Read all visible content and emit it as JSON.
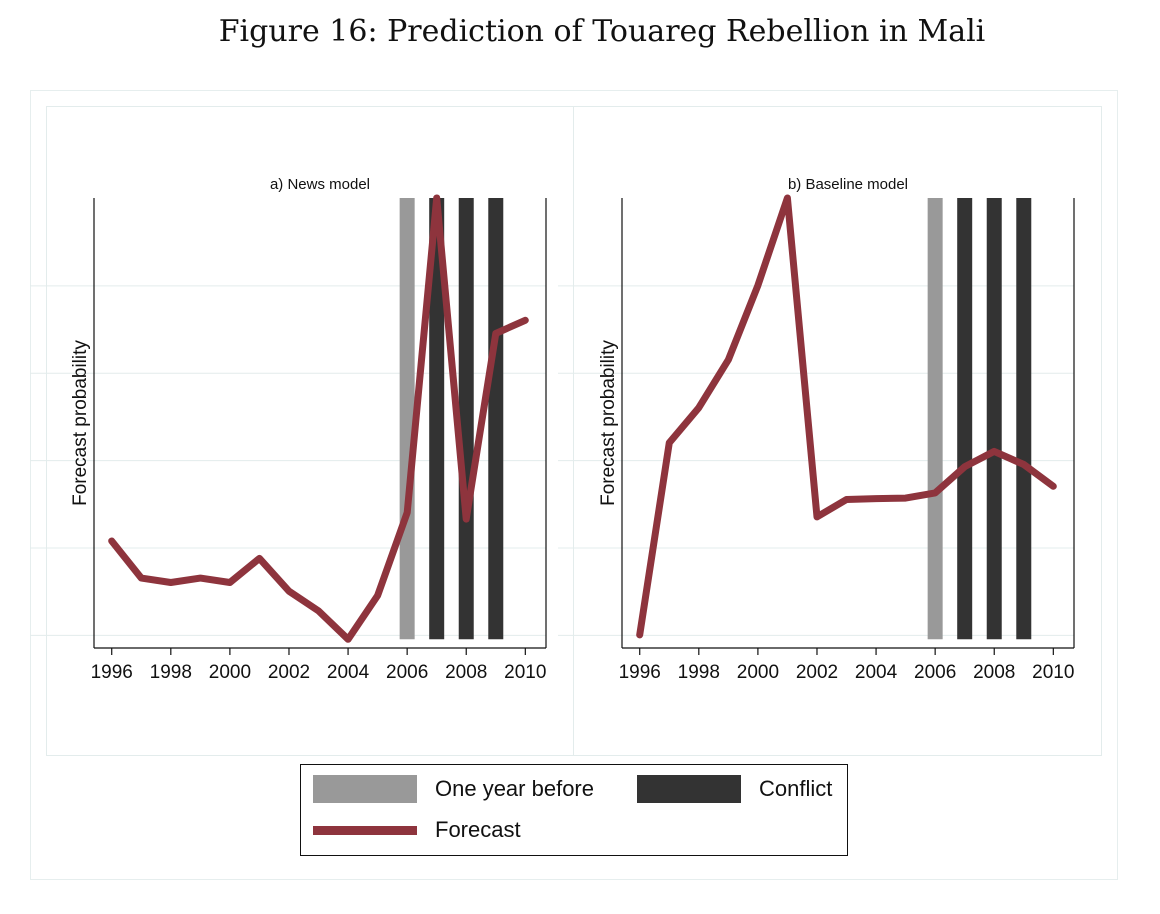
{
  "figure_title": "Figure 16: Prediction of Touareg Rebellion in Mali",
  "colors": {
    "one_year_before": "#999999",
    "conflict": "#333333",
    "forecast": "#8e343d"
  },
  "legend": {
    "one_year_before": "One year before",
    "conflict": "Conflict",
    "forecast": "Forecast"
  },
  "chart_data": [
    {
      "type": "line",
      "title": "a) News model",
      "ylabel": "Forecast probability",
      "xlabel": "",
      "xlim": [
        1995.4,
        2010.7
      ],
      "ylim": [
        -0.03,
        1.0
      ],
      "xticks": [
        "1996",
        "1998",
        "2000",
        "2002",
        "2004",
        "2006",
        "2008",
        "2010"
      ],
      "one_year_before": [
        2006
      ],
      "conflict_years": [
        2007,
        2008,
        2009
      ],
      "series": [
        {
          "name": "Forecast",
          "x": [
            1996,
            1997,
            1998,
            1999,
            2000,
            2001,
            2002,
            2003,
            2004,
            2005,
            2006,
            2007,
            2008,
            2009,
            2010
          ],
          "y": [
            0.215,
            0.13,
            0.12,
            0.13,
            0.12,
            0.175,
            0.1,
            0.055,
            -0.01,
            0.09,
            0.28,
            1.0,
            0.265,
            0.69,
            0.72
          ]
        }
      ]
    },
    {
      "type": "line",
      "title": "b) Baseline model",
      "ylabel": "Forecast probability",
      "xlabel": "",
      "xlim": [
        1995.4,
        2010.7
      ],
      "ylim": [
        -0.03,
        1.0
      ],
      "xticks": [
        "1996",
        "1998",
        "2000",
        "2002",
        "2004",
        "2006",
        "2008",
        "2010"
      ],
      "one_year_before": [
        2006
      ],
      "conflict_years": [
        2007,
        2008,
        2009
      ],
      "series": [
        {
          "name": "Forecast",
          "x": [
            1996,
            1997,
            1998,
            1999,
            2000,
            2001,
            2002,
            2003,
            2004,
            2005,
            2006,
            2007,
            2008,
            2009,
            2010
          ],
          "y": [
            0.0,
            0.44,
            0.52,
            0.63,
            0.8,
            1.0,
            0.27,
            0.31,
            0.312,
            0.313,
            0.325,
            0.385,
            0.42,
            0.39,
            0.34
          ]
        }
      ]
    }
  ]
}
